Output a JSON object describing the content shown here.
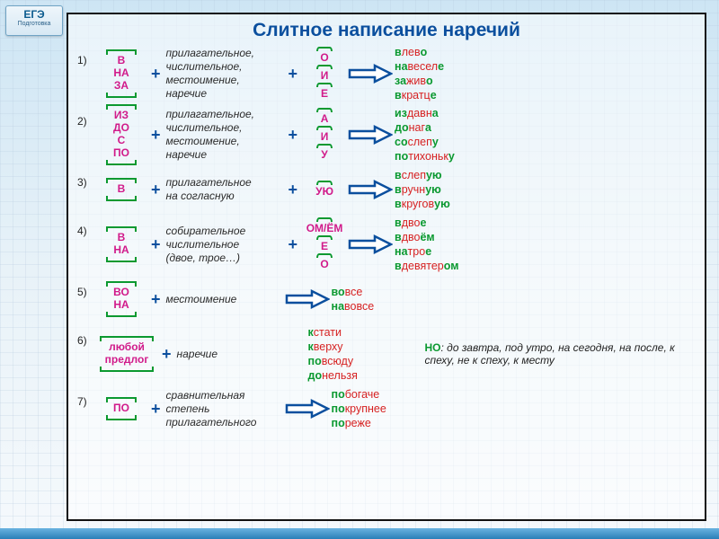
{
  "badge": {
    "line1": "ЕГЭ",
    "line2": "Подготовка"
  },
  "title": "Слитное написание наречий",
  "colors": {
    "title": "#0b4f9e",
    "prefix": "#d11a8a",
    "plus": "#0b4f9e",
    "suffix": "#d11a8a",
    "example": "#d62222",
    "highlight": "#0b9930",
    "arrow_stroke": "#0b4f9e",
    "bracket": "#0b9930"
  },
  "rows": [
    {
      "n": "1)",
      "prefixes": [
        "В",
        "НА",
        "ЗА"
      ],
      "middle": "прилагательное,\nчислительное,\nместоимение,\nнаречие",
      "suffixes": [
        "О",
        "И",
        "Е"
      ],
      "examples": [
        [
          [
            "в",
            "hl"
          ],
          [
            "лев",
            ""
          ],
          [
            "о",
            "hl"
          ]
        ],
        [
          [
            "на",
            "hl"
          ],
          [
            "весел",
            ""
          ],
          [
            "е",
            "hl"
          ]
        ],
        [
          [
            "за",
            "hl"
          ],
          [
            "жив",
            ""
          ],
          [
            "о",
            "hl"
          ]
        ],
        [
          [
            "в",
            "hl"
          ],
          [
            "кратц",
            ""
          ],
          [
            "е",
            "hl"
          ]
        ]
      ]
    },
    {
      "n": "2)",
      "prefixes": [
        "ИЗ",
        "ДО",
        "С",
        "ПО"
      ],
      "middle": "прилагательное,\nчислительное,\nместоимение,\nнаречие",
      "suffixes": [
        "А",
        "И",
        "У"
      ],
      "examples": [
        [
          [
            "из",
            "hl"
          ],
          [
            "давн",
            ""
          ],
          [
            "а",
            "hl"
          ]
        ],
        [
          [
            "до",
            "hl"
          ],
          [
            "наг",
            ""
          ],
          [
            "а",
            "hl"
          ]
        ],
        [
          [
            "со",
            "hl"
          ],
          [
            "слеп",
            ""
          ],
          [
            "у",
            "hl"
          ]
        ],
        [
          [
            "по",
            "hl"
          ],
          [
            "тихоньк",
            ""
          ],
          [
            "у",
            "hl"
          ]
        ]
      ]
    },
    {
      "n": "3)",
      "prefixes": [
        "В"
      ],
      "middle": "прилагательное\nна согласную",
      "suffixes": [
        "УЮ"
      ],
      "examples": [
        [
          [
            "в",
            "hl"
          ],
          [
            "слеп",
            ""
          ],
          [
            "ую",
            "hl"
          ]
        ],
        [
          [
            "в",
            "hl"
          ],
          [
            "ручн",
            ""
          ],
          [
            "ую",
            "hl"
          ]
        ],
        [
          [
            "в",
            "hl"
          ],
          [
            "кругов",
            ""
          ],
          [
            "ую",
            "hl"
          ]
        ]
      ]
    },
    {
      "n": "4)",
      "prefixes": [
        "В",
        "НА"
      ],
      "middle": "собирательное\nчислительное\n(двое, трое…)",
      "suffixes": [
        "ОМ/ЁМ",
        "Е",
        "О"
      ],
      "examples": [
        [
          [
            "в",
            "hl"
          ],
          [
            "дво",
            ""
          ],
          [
            "е",
            "hl"
          ]
        ],
        [
          [
            "в",
            "hl"
          ],
          [
            "дво",
            ""
          ],
          [
            "ём",
            "hl"
          ]
        ],
        [
          [
            "на",
            "hl"
          ],
          [
            "тро",
            ""
          ],
          [
            "е",
            "hl"
          ]
        ],
        [
          [
            "в",
            "hl"
          ],
          [
            "девятер",
            ""
          ],
          [
            "ом",
            "hl"
          ]
        ]
      ]
    },
    {
      "n": "5)",
      "prefixes": [
        "ВО",
        "НА"
      ],
      "middle": "местоимение",
      "suffixes": [],
      "examples": [
        [
          [
            "во",
            "hl"
          ],
          [
            "все",
            ""
          ]
        ],
        [
          [
            "на",
            "hl"
          ],
          [
            "вовсе",
            ""
          ]
        ]
      ]
    },
    {
      "n": "6)",
      "prefixes": [
        "любой",
        "предлог"
      ],
      "prefixes_wide": true,
      "middle": "наречие",
      "suffixes": [],
      "no_arrow": true,
      "examples": [
        [
          [
            "к",
            "hl"
          ],
          [
            "стати",
            ""
          ]
        ],
        [
          [
            "к",
            "hl"
          ],
          [
            "верху",
            ""
          ]
        ],
        [
          [
            "по",
            "hl"
          ],
          [
            "всюду",
            ""
          ]
        ],
        [
          [
            "до",
            "hl"
          ],
          [
            "нельзя",
            ""
          ]
        ]
      ],
      "note_label": "НО",
      "note": ": до завтра, под утро, на сегодня, на после, к спеху, не к спеху, к месту"
    },
    {
      "n": "7)",
      "prefixes": [
        "ПО"
      ],
      "middle": "сравнительная\nстепень\nприлагательного",
      "suffixes": [],
      "examples": [
        [
          [
            "по",
            "hl"
          ],
          [
            "богаче",
            ""
          ]
        ],
        [
          [
            "по",
            "hl"
          ],
          [
            "крупнее",
            ""
          ]
        ],
        [
          [
            "по",
            "hl"
          ],
          [
            "реже",
            ""
          ]
        ]
      ]
    }
  ]
}
